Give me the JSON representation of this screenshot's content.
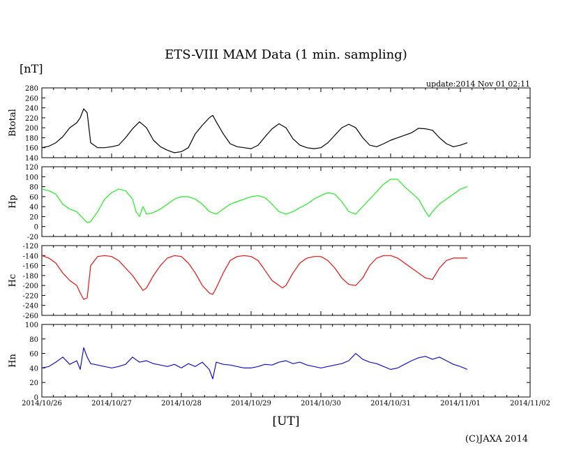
{
  "chart_data": {
    "type": "line",
    "title": "ETS-VIII MAM Data (1 min. sampling)",
    "unit_label": "[nT]",
    "update_label": "update:2014 Nov 01 02:11",
    "xlabel": "[UT]",
    "copyright": "(C)JAXA 2014",
    "x_ticks": [
      "2014/10/26",
      "2014/10/27",
      "2014/10/28",
      "2014/10/29",
      "2014/10/30",
      "2014/10/31",
      "2014/11/01",
      "2014/11/02"
    ],
    "x_range_days": [
      0,
      7
    ],
    "grid": false,
    "panels": [
      {
        "name": "Btotal",
        "color": "#000000",
        "ylim": [
          140,
          280
        ],
        "yticks": [
          140,
          160,
          180,
          200,
          220,
          240,
          260,
          280
        ],
        "x": [
          0.0,
          0.1,
          0.2,
          0.3,
          0.4,
          0.5,
          0.55,
          0.6,
          0.65,
          0.7,
          0.8,
          0.9,
          1.0,
          1.1,
          1.2,
          1.3,
          1.4,
          1.5,
          1.6,
          1.7,
          1.8,
          1.9,
          2.0,
          2.1,
          2.2,
          2.3,
          2.4,
          2.45,
          2.5,
          2.6,
          2.7,
          2.8,
          2.9,
          3.0,
          3.1,
          3.2,
          3.3,
          3.4,
          3.5,
          3.6,
          3.7,
          3.8,
          3.9,
          4.0,
          4.1,
          4.2,
          4.3,
          4.4,
          4.5,
          4.6,
          4.7,
          4.8,
          4.9,
          5.0,
          5.1,
          5.3,
          5.4,
          5.5,
          5.6,
          5.7,
          5.8,
          5.9,
          6.0,
          6.1
        ],
        "y": [
          160,
          163,
          170,
          182,
          200,
          210,
          220,
          238,
          230,
          170,
          160,
          160,
          162,
          165,
          180,
          198,
          212,
          200,
          175,
          162,
          155,
          150,
          152,
          160,
          188,
          205,
          220,
          225,
          212,
          188,
          168,
          162,
          160,
          158,
          165,
          182,
          198,
          208,
          200,
          178,
          165,
          160,
          158,
          160,
          170,
          185,
          200,
          207,
          200,
          180,
          165,
          162,
          168,
          175,
          180,
          190,
          199,
          198,
          195,
          180,
          168,
          162,
          165,
          170
        ]
      },
      {
        "name": "Hp",
        "color": "#22ee22",
        "ylim": [
          -20,
          120
        ],
        "yticks": [
          -20,
          0,
          20,
          40,
          60,
          80,
          100,
          120
        ],
        "x": [
          0.0,
          0.1,
          0.2,
          0.3,
          0.4,
          0.5,
          0.6,
          0.65,
          0.7,
          0.8,
          0.9,
          1.0,
          1.1,
          1.2,
          1.3,
          1.35,
          1.4,
          1.45,
          1.5,
          1.6,
          1.7,
          1.8,
          1.9,
          2.0,
          2.1,
          2.2,
          2.3,
          2.4,
          2.5,
          2.6,
          2.7,
          2.8,
          2.9,
          3.0,
          3.1,
          3.2,
          3.3,
          3.4,
          3.5,
          3.6,
          3.7,
          3.8,
          3.9,
          4.0,
          4.1,
          4.2,
          4.3,
          4.4,
          4.5,
          4.6,
          4.7,
          4.8,
          4.9,
          5.0,
          5.1,
          5.2,
          5.4,
          5.5,
          5.55,
          5.6,
          5.7,
          5.8,
          5.9,
          6.0,
          6.1
        ],
        "y": [
          75,
          72,
          65,
          45,
          35,
          30,
          15,
          8,
          10,
          30,
          55,
          68,
          75,
          72,
          55,
          30,
          20,
          40,
          25,
          28,
          35,
          45,
          55,
          60,
          60,
          55,
          45,
          30,
          25,
          35,
          45,
          50,
          55,
          60,
          62,
          58,
          45,
          30,
          25,
          30,
          38,
          45,
          55,
          62,
          68,
          65,
          50,
          30,
          25,
          40,
          55,
          70,
          85,
          95,
          95,
          80,
          55,
          30,
          20,
          30,
          45,
          55,
          65,
          75,
          80
        ]
      },
      {
        "name": "Hc",
        "color": "#ee1111",
        "ylim": [
          -260,
          -120
        ],
        "yticks": [
          -260,
          -240,
          -220,
          -200,
          -180,
          -160,
          -140,
          -120
        ],
        "x": [
          0.0,
          0.1,
          0.2,
          0.3,
          0.4,
          0.5,
          0.55,
          0.6,
          0.65,
          0.7,
          0.8,
          0.9,
          1.0,
          1.1,
          1.2,
          1.3,
          1.4,
          1.45,
          1.5,
          1.6,
          1.7,
          1.8,
          1.9,
          2.0,
          2.1,
          2.2,
          2.3,
          2.4,
          2.45,
          2.5,
          2.6,
          2.7,
          2.8,
          2.9,
          3.0,
          3.1,
          3.2,
          3.3,
          3.4,
          3.45,
          3.5,
          3.6,
          3.7,
          3.8,
          3.9,
          4.0,
          4.1,
          4.2,
          4.3,
          4.4,
          4.5,
          4.6,
          4.7,
          4.8,
          4.9,
          5.0,
          5.1,
          5.2,
          5.3,
          5.4,
          5.5,
          5.6,
          5.7,
          5.8,
          5.9,
          6.0,
          6.1
        ],
        "y": [
          -140,
          -145,
          -155,
          -175,
          -190,
          -200,
          -215,
          -228,
          -225,
          -160,
          -142,
          -140,
          -142,
          -150,
          -165,
          -180,
          -200,
          -210,
          -205,
          -180,
          -160,
          -145,
          -140,
          -142,
          -155,
          -175,
          -200,
          -215,
          -218,
          -205,
          -175,
          -150,
          -142,
          -140,
          -142,
          -150,
          -170,
          -190,
          -200,
          -205,
          -200,
          -175,
          -155,
          -145,
          -142,
          -142,
          -150,
          -165,
          -185,
          -198,
          -200,
          -185,
          -160,
          -145,
          -140,
          -140,
          -145,
          -155,
          -165,
          -175,
          -185,
          -188,
          -165,
          -150,
          -145,
          -145,
          -145
        ]
      },
      {
        "name": "Hn",
        "color": "#1111cc",
        "ylim": [
          0,
          100
        ],
        "yticks": [
          0,
          20,
          40,
          60,
          80,
          100
        ],
        "x": [
          0.0,
          0.1,
          0.2,
          0.3,
          0.4,
          0.5,
          0.55,
          0.6,
          0.65,
          0.7,
          0.8,
          0.9,
          1.0,
          1.1,
          1.2,
          1.3,
          1.4,
          1.5,
          1.6,
          1.7,
          1.8,
          1.9,
          2.0,
          2.1,
          2.2,
          2.3,
          2.4,
          2.45,
          2.5,
          2.6,
          2.7,
          2.8,
          2.9,
          3.0,
          3.1,
          3.2,
          3.3,
          3.4,
          3.5,
          3.6,
          3.7,
          3.8,
          3.9,
          4.0,
          4.1,
          4.2,
          4.3,
          4.4,
          4.5,
          4.6,
          4.7,
          4.8,
          4.9,
          5.0,
          5.1,
          5.2,
          5.3,
          5.4,
          5.5,
          5.6,
          5.7,
          5.8,
          5.9,
          6.0,
          6.1
        ],
        "y": [
          40,
          42,
          48,
          55,
          45,
          50,
          38,
          68,
          55,
          46,
          44,
          42,
          40,
          42,
          45,
          55,
          48,
          50,
          46,
          44,
          42,
          45,
          40,
          46,
          42,
          48,
          38,
          25,
          48,
          45,
          44,
          42,
          40,
          40,
          42,
          45,
          44,
          48,
          50,
          46,
          48,
          44,
          42,
          40,
          42,
          44,
          46,
          50,
          60,
          52,
          48,
          46,
          42,
          38,
          40,
          45,
          50,
          54,
          56,
          52,
          55,
          50,
          45,
          42,
          38
        ]
      }
    ]
  }
}
